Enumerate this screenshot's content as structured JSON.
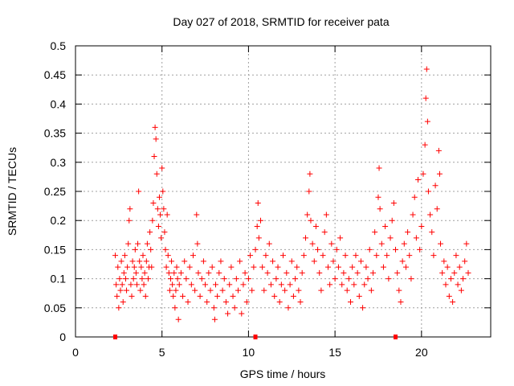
{
  "chart_data": {
    "type": "scatter",
    "title": "Day 027 of 2018, SRMTID for receiver pata",
    "xlabel": "GPS time / hours",
    "ylabel": "SRMTID / TECUs",
    "xlim": [
      0,
      24
    ],
    "ylim": [
      0,
      0.5
    ],
    "xticks": [
      0,
      5,
      10,
      15,
      20
    ],
    "yticks": [
      0,
      0.05,
      0.1,
      0.15,
      0.2,
      0.25,
      0.3,
      0.35,
      0.4,
      0.45,
      0.5
    ],
    "xtick_labels": [
      "0",
      "5",
      "10",
      "15",
      "20"
    ],
    "ytick_labels": [
      "0",
      "0.05",
      "0.1",
      "0.15",
      "0.2",
      "0.25",
      "0.3",
      "0.35",
      "0.4",
      "0.45",
      "0.5"
    ],
    "grid": true,
    "marker": "+",
    "color": "#ff0000",
    "baseline_markers_x": [
      2.3,
      10.4,
      18.5
    ],
    "series": [
      {
        "name": "SRMTID",
        "points": [
          [
            2.3,
            0.14
          ],
          [
            2.35,
            0.09
          ],
          [
            2.4,
            0.07
          ],
          [
            2.45,
            0.12
          ],
          [
            2.5,
            0.05
          ],
          [
            2.55,
            0.1
          ],
          [
            2.6,
            0.08
          ],
          [
            2.65,
            0.13
          ],
          [
            2.7,
            0.09
          ],
          [
            2.75,
            0.06
          ],
          [
            2.8,
            0.11
          ],
          [
            2.85,
            0.14
          ],
          [
            2.9,
            0.1
          ],
          [
            2.95,
            0.08
          ],
          [
            3.0,
            0.12
          ],
          [
            3.05,
            0.16
          ],
          [
            3.1,
            0.2
          ],
          [
            3.15,
            0.22
          ],
          [
            3.2,
            0.09
          ],
          [
            3.25,
            0.07
          ],
          [
            3.3,
            0.13
          ],
          [
            3.35,
            0.1
          ],
          [
            3.4,
            0.12
          ],
          [
            3.45,
            0.15
          ],
          [
            3.5,
            0.11
          ],
          [
            3.55,
            0.09
          ],
          [
            3.6,
            0.16
          ],
          [
            3.65,
            0.25
          ],
          [
            3.7,
            0.13
          ],
          [
            3.75,
            0.08
          ],
          [
            3.8,
            0.12
          ],
          [
            3.85,
            0.1
          ],
          [
            3.9,
            0.14
          ],
          [
            3.95,
            0.09
          ],
          [
            4.0,
            0.11
          ],
          [
            4.05,
            0.07
          ],
          [
            4.1,
            0.13
          ],
          [
            4.15,
            0.16
          ],
          [
            4.2,
            0.1
          ],
          [
            4.25,
            0.12
          ],
          [
            4.3,
            0.18
          ],
          [
            4.35,
            0.15
          ],
          [
            4.4,
            0.12
          ],
          [
            4.45,
            0.2
          ],
          [
            4.5,
            0.23
          ],
          [
            4.55,
            0.31
          ],
          [
            4.6,
            0.36
          ],
          [
            4.65,
            0.34
          ],
          [
            4.7,
            0.28
          ],
          [
            4.75,
            0.22
          ],
          [
            4.8,
            0.19
          ],
          [
            4.85,
            0.24
          ],
          [
            4.9,
            0.21
          ],
          [
            4.95,
            0.17
          ],
          [
            5.0,
            0.29
          ],
          [
            5.05,
            0.25
          ],
          [
            5.1,
            0.22
          ],
          [
            5.15,
            0.18
          ],
          [
            5.2,
            0.15
          ],
          [
            5.25,
            0.12
          ],
          [
            5.3,
            0.21
          ],
          [
            5.35,
            0.14
          ],
          [
            5.4,
            0.11
          ],
          [
            5.45,
            0.08
          ],
          [
            5.5,
            0.1
          ],
          [
            5.55,
            0.13
          ],
          [
            5.6,
            0.09
          ],
          [
            5.65,
            0.07
          ],
          [
            5.7,
            0.11
          ],
          [
            5.75,
            0.05
          ],
          [
            5.8,
            0.08
          ],
          [
            5.85,
            0.12
          ],
          [
            5.9,
            0.1
          ],
          [
            5.95,
            0.03
          ],
          [
            6.0,
            0.09
          ],
          [
            6.1,
            0.11
          ],
          [
            6.2,
            0.07
          ],
          [
            6.3,
            0.13
          ],
          [
            6.4,
            0.1
          ],
          [
            6.5,
            0.06
          ],
          [
            6.6,
            0.12
          ],
          [
            6.7,
            0.09
          ],
          [
            6.8,
            0.14
          ],
          [
            6.9,
            0.08
          ],
          [
            7.0,
            0.21
          ],
          [
            7.05,
            0.16
          ],
          [
            7.1,
            0.11
          ],
          [
            7.2,
            0.07
          ],
          [
            7.3,
            0.1
          ],
          [
            7.4,
            0.13
          ],
          [
            7.5,
            0.09
          ],
          [
            7.6,
            0.06
          ],
          [
            7.7,
            0.11
          ],
          [
            7.8,
            0.08
          ],
          [
            7.9,
            0.12
          ],
          [
            8.0,
            0.05
          ],
          [
            8.05,
            0.03
          ],
          [
            8.1,
            0.09
          ],
          [
            8.2,
            0.07
          ],
          [
            8.3,
            0.11
          ],
          [
            8.4,
            0.13
          ],
          [
            8.5,
            0.08
          ],
          [
            8.6,
            0.1
          ],
          [
            8.7,
            0.06
          ],
          [
            8.8,
            0.04
          ],
          [
            8.9,
            0.09
          ],
          [
            9.0,
            0.12
          ],
          [
            9.1,
            0.07
          ],
          [
            9.2,
            0.05
          ],
          [
            9.3,
            0.1
          ],
          [
            9.4,
            0.08
          ],
          [
            9.5,
            0.13
          ],
          [
            9.6,
            0.04
          ],
          [
            9.7,
            0.09
          ],
          [
            9.8,
            0.11
          ],
          [
            9.9,
            0.06
          ],
          [
            10.0,
            0.1
          ],
          [
            10.1,
            0.14
          ],
          [
            10.2,
            0.08
          ],
          [
            10.3,
            0.12
          ],
          [
            10.4,
            0.15
          ],
          [
            10.5,
            0.19
          ],
          [
            10.55,
            0.23
          ],
          [
            10.6,
            0.17
          ],
          [
            10.7,
            0.2
          ],
          [
            10.8,
            0.12
          ],
          [
            10.9,
            0.08
          ],
          [
            11.0,
            0.14
          ],
          [
            11.1,
            0.11
          ],
          [
            11.2,
            0.16
          ],
          [
            11.3,
            0.09
          ],
          [
            11.4,
            0.13
          ],
          [
            11.5,
            0.07
          ],
          [
            11.6,
            0.1
          ],
          [
            11.7,
            0.12
          ],
          [
            11.8,
            0.06
          ],
          [
            11.9,
            0.09
          ],
          [
            12.0,
            0.14
          ],
          [
            12.1,
            0.08
          ],
          [
            12.2,
            0.11
          ],
          [
            12.3,
            0.05
          ],
          [
            12.4,
            0.09
          ],
          [
            12.5,
            0.13
          ],
          [
            12.6,
            0.07
          ],
          [
            12.7,
            0.1
          ],
          [
            12.8,
            0.12
          ],
          [
            12.9,
            0.08
          ],
          [
            13.0,
            0.06
          ],
          [
            13.1,
            0.11
          ],
          [
            13.2,
            0.14
          ],
          [
            13.3,
            0.17
          ],
          [
            13.4,
            0.21
          ],
          [
            13.5,
            0.25
          ],
          [
            13.55,
            0.28
          ],
          [
            13.6,
            0.2
          ],
          [
            13.7,
            0.16
          ],
          [
            13.8,
            0.13
          ],
          [
            13.9,
            0.19
          ],
          [
            14.0,
            0.15
          ],
          [
            14.1,
            0.11
          ],
          [
            14.2,
            0.08
          ],
          [
            14.3,
            0.14
          ],
          [
            14.4,
            0.18
          ],
          [
            14.5,
            0.21
          ],
          [
            14.6,
            0.12
          ],
          [
            14.7,
            0.09
          ],
          [
            14.8,
            0.16
          ],
          [
            14.9,
            0.13
          ],
          [
            15.0,
            0.1
          ],
          [
            15.1,
            0.15
          ],
          [
            15.2,
            0.12
          ],
          [
            15.3,
            0.17
          ],
          [
            15.4,
            0.09
          ],
          [
            15.5,
            0.11
          ],
          [
            15.6,
            0.14
          ],
          [
            15.7,
            0.08
          ],
          [
            15.8,
            0.1
          ],
          [
            15.9,
            0.06
          ],
          [
            16.0,
            0.12
          ],
          [
            16.1,
            0.09
          ],
          [
            16.2,
            0.14
          ],
          [
            16.3,
            0.11
          ],
          [
            16.4,
            0.07
          ],
          [
            16.5,
            0.13
          ],
          [
            16.6,
            0.05
          ],
          [
            16.7,
            0.09
          ],
          [
            16.8,
            0.12
          ],
          [
            16.9,
            0.1
          ],
          [
            17.0,
            0.15
          ],
          [
            17.1,
            0.08
          ],
          [
            17.2,
            0.11
          ],
          [
            17.3,
            0.18
          ],
          [
            17.4,
            0.14
          ],
          [
            17.5,
            0.24
          ],
          [
            17.55,
            0.29
          ],
          [
            17.6,
            0.22
          ],
          [
            17.7,
            0.16
          ],
          [
            17.8,
            0.12
          ],
          [
            17.9,
            0.19
          ],
          [
            18.0,
            0.14
          ],
          [
            18.1,
            0.1
          ],
          [
            18.2,
            0.17
          ],
          [
            18.3,
            0.2
          ],
          [
            18.4,
            0.23
          ],
          [
            18.5,
            0.15
          ],
          [
            18.6,
            0.11
          ],
          [
            18.7,
            0.08
          ],
          [
            18.8,
            0.06
          ],
          [
            18.9,
            0.13
          ],
          [
            19.0,
            0.16
          ],
          [
            19.1,
            0.12
          ],
          [
            19.2,
            0.18
          ],
          [
            19.3,
            0.14
          ],
          [
            19.4,
            0.1
          ],
          [
            19.5,
            0.21
          ],
          [
            19.6,
            0.24
          ],
          [
            19.7,
            0.17
          ],
          [
            19.8,
            0.27
          ],
          [
            19.9,
            0.15
          ],
          [
            20.0,
            0.19
          ],
          [
            20.1,
            0.28
          ],
          [
            20.2,
            0.33
          ],
          [
            20.25,
            0.41
          ],
          [
            20.3,
            0.46
          ],
          [
            20.35,
            0.37
          ],
          [
            20.4,
            0.25
          ],
          [
            20.5,
            0.21
          ],
          [
            20.6,
            0.18
          ],
          [
            20.7,
            0.14
          ],
          [
            20.8,
            0.26
          ],
          [
            20.9,
            0.22
          ],
          [
            21.0,
            0.32
          ],
          [
            21.05,
            0.28
          ],
          [
            21.1,
            0.16
          ],
          [
            21.2,
            0.11
          ],
          [
            21.3,
            0.13
          ],
          [
            21.4,
            0.09
          ],
          [
            21.5,
            0.12
          ],
          [
            21.6,
            0.07
          ],
          [
            21.7,
            0.1
          ],
          [
            21.8,
            0.06
          ],
          [
            21.9,
            0.11
          ],
          [
            22.0,
            0.14
          ],
          [
            22.1,
            0.09
          ],
          [
            22.2,
            0.12
          ],
          [
            22.3,
            0.08
          ],
          [
            22.4,
            0.1
          ],
          [
            22.5,
            0.13
          ],
          [
            22.6,
            0.16
          ],
          [
            22.7,
            0.11
          ]
        ]
      }
    ]
  }
}
